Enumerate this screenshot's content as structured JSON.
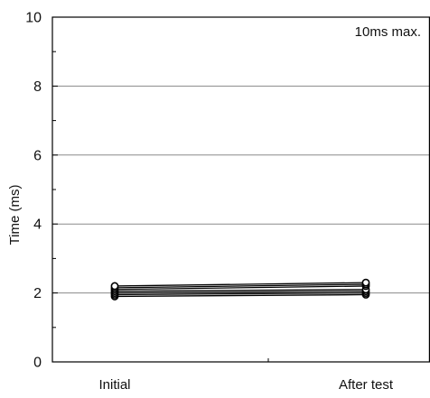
{
  "chart_data": {
    "type": "line",
    "title": "",
    "annotation": "10ms max.",
    "xlabel": "",
    "ylabel": "Time (ms)",
    "categories": [
      "Initial",
      "After test"
    ],
    "ylim": [
      0,
      10
    ],
    "yticks": [
      0,
      2,
      4,
      6,
      8,
      10
    ],
    "y_minor_step": 1,
    "grid": true,
    "colors": {
      "line": "#000000",
      "grid": "#8a8a8a",
      "axis": "#000000"
    },
    "series": [
      {
        "values": [
          1.9,
          1.95
        ]
      },
      {
        "values": [
          1.95,
          2.0
        ]
      },
      {
        "values": [
          2.0,
          2.05
        ]
      },
      {
        "values": [
          2.05,
          2.1
        ]
      },
      {
        "values": [
          2.1,
          2.2
        ]
      },
      {
        "values": [
          2.15,
          2.25
        ]
      },
      {
        "values": [
          2.2,
          2.3
        ]
      }
    ]
  }
}
